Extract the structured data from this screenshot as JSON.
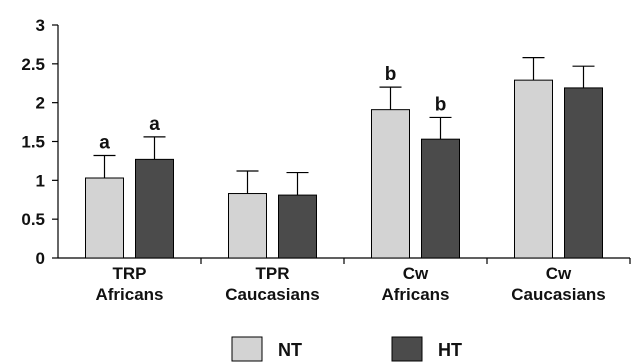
{
  "chart_data": {
    "type": "bar",
    "categories": [
      [
        "TRP",
        "Africans"
      ],
      [
        "TPR",
        "Caucasians"
      ],
      [
        "Cw",
        "Africans"
      ],
      [
        "Cw",
        "Caucasians"
      ]
    ],
    "series": [
      {
        "name": "NT",
        "color": "#d3d3d3",
        "values": [
          1.03,
          0.83,
          1.91,
          2.29
        ],
        "errors": [
          0.29,
          0.29,
          0.29,
          0.29
        ],
        "annotations": [
          "a",
          "",
          "b",
          ""
        ]
      },
      {
        "name": "HT",
        "color": "#4b4b4b",
        "values": [
          1.27,
          0.81,
          1.53,
          2.19
        ],
        "errors": [
          0.29,
          0.29,
          0.28,
          0.28
        ],
        "annotations": [
          "a",
          "",
          "b",
          ""
        ]
      }
    ],
    "yticks": [
      0,
      0.5,
      1,
      1.5,
      2,
      2.5,
      3
    ],
    "ytick_labels": [
      "0",
      "0.5",
      "1",
      "1.5",
      "2",
      "2.5",
      "3"
    ],
    "ylim": [
      0,
      3
    ],
    "grid": false,
    "legend_position": "bottom-center",
    "title": "",
    "xlabel": "",
    "ylabel": ""
  }
}
